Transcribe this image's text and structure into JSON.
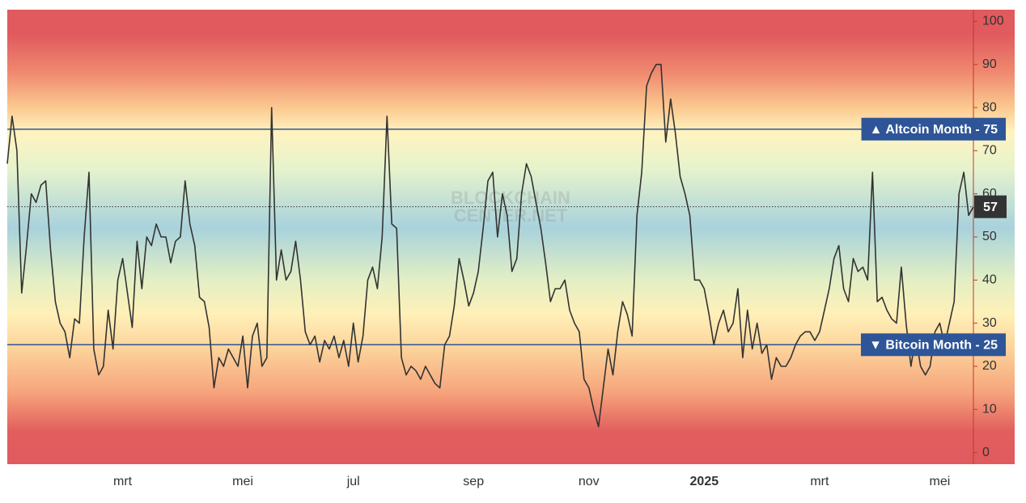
{
  "chart_data": {
    "type": "line",
    "watermark": [
      "BLOCKCHAIN",
      "CENTER.NET"
    ],
    "categories": [
      null,
      null,
      null,
      null,
      null,
      null,
      null,
      null,
      null,
      null,
      null,
      null,
      null,
      null,
      null,
      null,
      null,
      null,
      null,
      null,
      null,
      null,
      null,
      null,
      "mrt",
      null,
      null,
      null,
      null,
      null,
      null,
      null,
      null,
      null,
      null,
      null,
      null,
      null,
      null,
      null,
      null,
      null,
      null,
      null,
      null,
      null,
      null,
      null,
      null,
      "mei",
      null,
      null,
      null,
      null,
      null,
      null,
      null,
      null,
      null,
      null,
      null,
      null,
      null,
      null,
      null,
      null,
      null,
      null,
      null,
      null,
      null,
      null,
      "jul",
      null,
      null,
      null,
      null,
      null,
      null,
      null,
      null,
      null,
      null,
      null,
      null,
      null,
      null,
      null,
      null,
      null,
      null,
      null,
      null,
      null,
      null,
      null,
      null,
      "sep",
      null,
      null,
      null,
      null,
      null,
      null,
      null,
      null,
      null,
      null,
      null,
      null,
      null,
      null,
      null,
      null,
      null,
      null,
      null,
      null,
      null,
      null,
      null,
      "nov",
      null,
      null,
      null,
      null,
      null,
      null,
      null,
      null,
      null,
      null,
      null,
      null,
      null,
      null,
      null,
      null,
      null,
      null,
      null,
      null,
      null,
      null,
      null,
      "2025",
      null,
      null,
      null,
      null,
      null,
      null,
      null,
      null,
      null,
      null,
      null,
      null,
      null,
      null,
      null,
      null,
      null,
      null,
      null,
      null,
      null,
      null,
      null,
      "mrt",
      null,
      null,
      null,
      null,
      null,
      null,
      null,
      null,
      null,
      null,
      null,
      null,
      null,
      null,
      null,
      null,
      null,
      null,
      null,
      null,
      null,
      null,
      null,
      null,
      "mei",
      null,
      null,
      null,
      null,
      null,
      null,
      null
    ],
    "series": [
      {
        "color": "#333333",
        "values": [
          67,
          78,
          70,
          37,
          48,
          60,
          58,
          62,
          63,
          47,
          35,
          30,
          28,
          22,
          31,
          30,
          50,
          65,
          24,
          18,
          20,
          33,
          24,
          40,
          45,
          37,
          29,
          49,
          38,
          50,
          48,
          53,
          50,
          50,
          44,
          49,
          50,
          63,
          53,
          48,
          36,
          35,
          29,
          15,
          22,
          20,
          24,
          22,
          20,
          27,
          15,
          27,
          30,
          20,
          22,
          80,
          40,
          47,
          40,
          42,
          49,
          40,
          28,
          25,
          27,
          21,
          26,
          24,
          27,
          22,
          26,
          20,
          30,
          21,
          27,
          40,
          43,
          38,
          50,
          78,
          53,
          52,
          22,
          18,
          20,
          19,
          17,
          20,
          18,
          16,
          15,
          25,
          27,
          34,
          45,
          40,
          34,
          37,
          42,
          52,
          63,
          65,
          50,
          60,
          55,
          42,
          45,
          60,
          67,
          64,
          58,
          52,
          44,
          35,
          38,
          38,
          40,
          33,
          30,
          28,
          17,
          15,
          10,
          6,
          15,
          24,
          18,
          28,
          35,
          32,
          27,
          55,
          65,
          85,
          88,
          90,
          90,
          72,
          82,
          74,
          64,
          60,
          55,
          40,
          40,
          38,
          32,
          25,
          30,
          33,
          28,
          30,
          38,
          22,
          33,
          24,
          30,
          23,
          25,
          17,
          22,
          20,
          20,
          22,
          25,
          27,
          28,
          28,
          26,
          28,
          33,
          38,
          45,
          48,
          38,
          35,
          45,
          42,
          43,
          40,
          65,
          35,
          36,
          33,
          31,
          30,
          43,
          30,
          20,
          27,
          20,
          18,
          20,
          28,
          30,
          25,
          30,
          35,
          60,
          65,
          55,
          57
        ]
      }
    ],
    "reference_lines": [
      {
        "label": "▲ Altcoin Month - 75",
        "value": 75,
        "color": "#2e5597"
      },
      {
        "label": "▼ Bitcoin Month - 25",
        "value": 25,
        "color": "#2e5597"
      }
    ],
    "ylim": [
      -2.7,
      102.7
    ],
    "yticks": [
      0,
      10,
      20,
      30,
      40,
      50,
      60,
      70,
      80,
      90,
      100
    ]
  }
}
